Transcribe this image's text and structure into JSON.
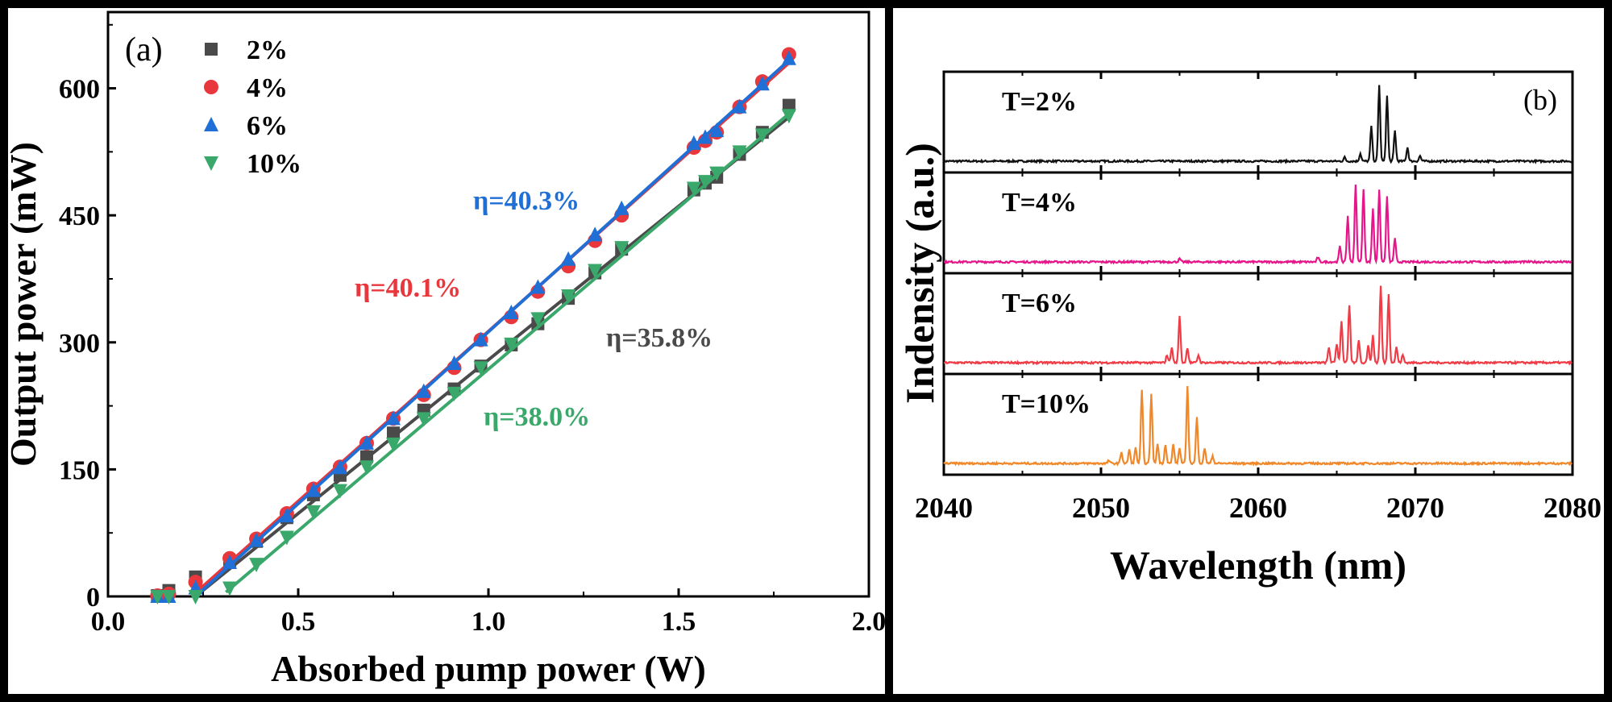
{
  "chart_data": [
    {
      "type": "scatter",
      "panel_label": "(a)",
      "xlabel": "Absorbed pump power (W)",
      "ylabel": "Output power (mW)",
      "xlim": [
        0,
        2.0
      ],
      "ylim": [
        0,
        690
      ],
      "xticks": [
        "0.0",
        "0.5",
        "1.0",
        "1.5",
        "2.0"
      ],
      "xtick_values": [
        0,
        0.5,
        1.0,
        1.5,
        2.0
      ],
      "yticks": [
        "0",
        "150",
        "300",
        "450",
        "600"
      ],
      "ytick_values": [
        0,
        150,
        300,
        450,
        600
      ],
      "legend_position": "top-left",
      "x": [
        0.13,
        0.16,
        0.23,
        0.32,
        0.39,
        0.47,
        0.54,
        0.61,
        0.68,
        0.75,
        0.83,
        0.91,
        0.98,
        1.06,
        1.13,
        1.21,
        1.28,
        1.35,
        1.54,
        1.57,
        1.6,
        1.66,
        1.72,
        1.79
      ],
      "series": [
        {
          "name": "2%",
          "marker": "square",
          "color": "#4a4a4a",
          "values": [
            1,
            7,
            23,
            42,
            65,
            93,
            120,
            143,
            165,
            193,
            220,
            245,
            272,
            297,
            322,
            352,
            382,
            410,
            480,
            488,
            495,
            522,
            548,
            580
          ],
          "fit": {
            "x": [
              0.23,
              1.79
            ],
            "y": [
              0,
              566
            ]
          },
          "annotation": "η=35.8%"
        },
        {
          "name": "4%",
          "marker": "circle",
          "color": "#e8383d",
          "values": [
            1,
            3,
            17,
            45,
            68,
            98,
            127,
            153,
            181,
            210,
            238,
            270,
            303,
            330,
            360,
            390,
            420,
            450,
            530,
            538,
            548,
            578,
            608,
            640
          ],
          "fit": {
            "x": [
              0.22,
              1.79
            ],
            "y": [
              0,
              630
            ]
          },
          "annotation": "η=40.1%"
        },
        {
          "name": "6%",
          "marker": "triangle-up",
          "color": "#1f6fd6",
          "values": [
            0,
            0,
            10,
            40,
            66,
            95,
            125,
            152,
            181,
            210,
            242,
            275,
            303,
            335,
            365,
            398,
            427,
            458,
            535,
            542,
            550,
            578,
            605,
            635
          ],
          "fit": {
            "x": [
              0.23,
              1.79
            ],
            "y": [
              0,
              633
            ]
          },
          "annotation": "η=40.3%"
        },
        {
          "name": "10%",
          "marker": "triangle-down",
          "color": "#3aa86a",
          "values": [
            0,
            0,
            0,
            10,
            38,
            70,
            100,
            125,
            153,
            180,
            210,
            240,
            270,
            298,
            328,
            355,
            385,
            412,
            482,
            490,
            500,
            525,
            545,
            568
          ],
          "fit": {
            "x": [
              0.31,
              1.79
            ],
            "y": [
              5,
              570
            ]
          },
          "annotation": "η=38.0%"
        }
      ]
    },
    {
      "type": "line",
      "panel_label": "(b)",
      "xlabel": "Wavelength (nm)",
      "ylabel": "Indensity (a.u.)",
      "xlim": [
        2040,
        2080
      ],
      "xticks": [
        "2040",
        "2050",
        "2060",
        "2070",
        "2080"
      ],
      "xtick_values": [
        2040,
        2050,
        2060,
        2070,
        2080
      ],
      "series": [
        {
          "name": "T=2%",
          "color": "#111111",
          "peaks": [
            [
              2065.5,
              0.05
            ],
            [
              2066.5,
              0.1
            ],
            [
              2067.2,
              0.45
            ],
            [
              2067.7,
              1.0
            ],
            [
              2068.2,
              0.85
            ],
            [
              2068.7,
              0.4
            ],
            [
              2069.5,
              0.18
            ],
            [
              2070.3,
              0.07
            ]
          ]
        },
        {
          "name": "T=4%",
          "color": "#e6168a",
          "peaks": [
            [
              2065.2,
              0.2
            ],
            [
              2065.7,
              0.6
            ],
            [
              2066.2,
              1.0
            ],
            [
              2066.7,
              0.95
            ],
            [
              2067.3,
              0.7
            ],
            [
              2067.7,
              0.95
            ],
            [
              2068.2,
              0.85
            ],
            [
              2068.7,
              0.3
            ],
            [
              2063.8,
              0.06
            ],
            [
              2055,
              0.04
            ]
          ]
        },
        {
          "name": "T=6%",
          "color": "#f03c46",
          "peaks": [
            [
              2054.2,
              0.1
            ],
            [
              2054.5,
              0.2
            ],
            [
              2055.0,
              0.6
            ],
            [
              2055.5,
              0.2
            ],
            [
              2056.2,
              0.1
            ],
            [
              2064.5,
              0.2
            ],
            [
              2065.0,
              0.25
            ],
            [
              2065.3,
              0.55
            ],
            [
              2065.8,
              0.75
            ],
            [
              2066.4,
              0.3
            ],
            [
              2067.0,
              0.22
            ],
            [
              2067.3,
              0.35
            ],
            [
              2067.8,
              1.0
            ],
            [
              2068.3,
              0.9
            ],
            [
              2068.8,
              0.2
            ],
            [
              2069.2,
              0.1
            ]
          ]
        },
        {
          "name": "T=10%",
          "color": "#f0882a",
          "peaks": [
            [
              2051.3,
              0.15
            ],
            [
              2051.8,
              0.18
            ],
            [
              2052.2,
              0.2
            ],
            [
              2052.6,
              0.95
            ],
            [
              2053.2,
              0.9
            ],
            [
              2053.6,
              0.25
            ],
            [
              2054.1,
              0.25
            ],
            [
              2054.6,
              0.25
            ],
            [
              2055.0,
              0.2
            ],
            [
              2055.5,
              1.0
            ],
            [
              2056.1,
              0.6
            ],
            [
              2056.6,
              0.2
            ],
            [
              2057.1,
              0.1
            ],
            [
              2050.5,
              0.04
            ]
          ]
        }
      ]
    }
  ]
}
